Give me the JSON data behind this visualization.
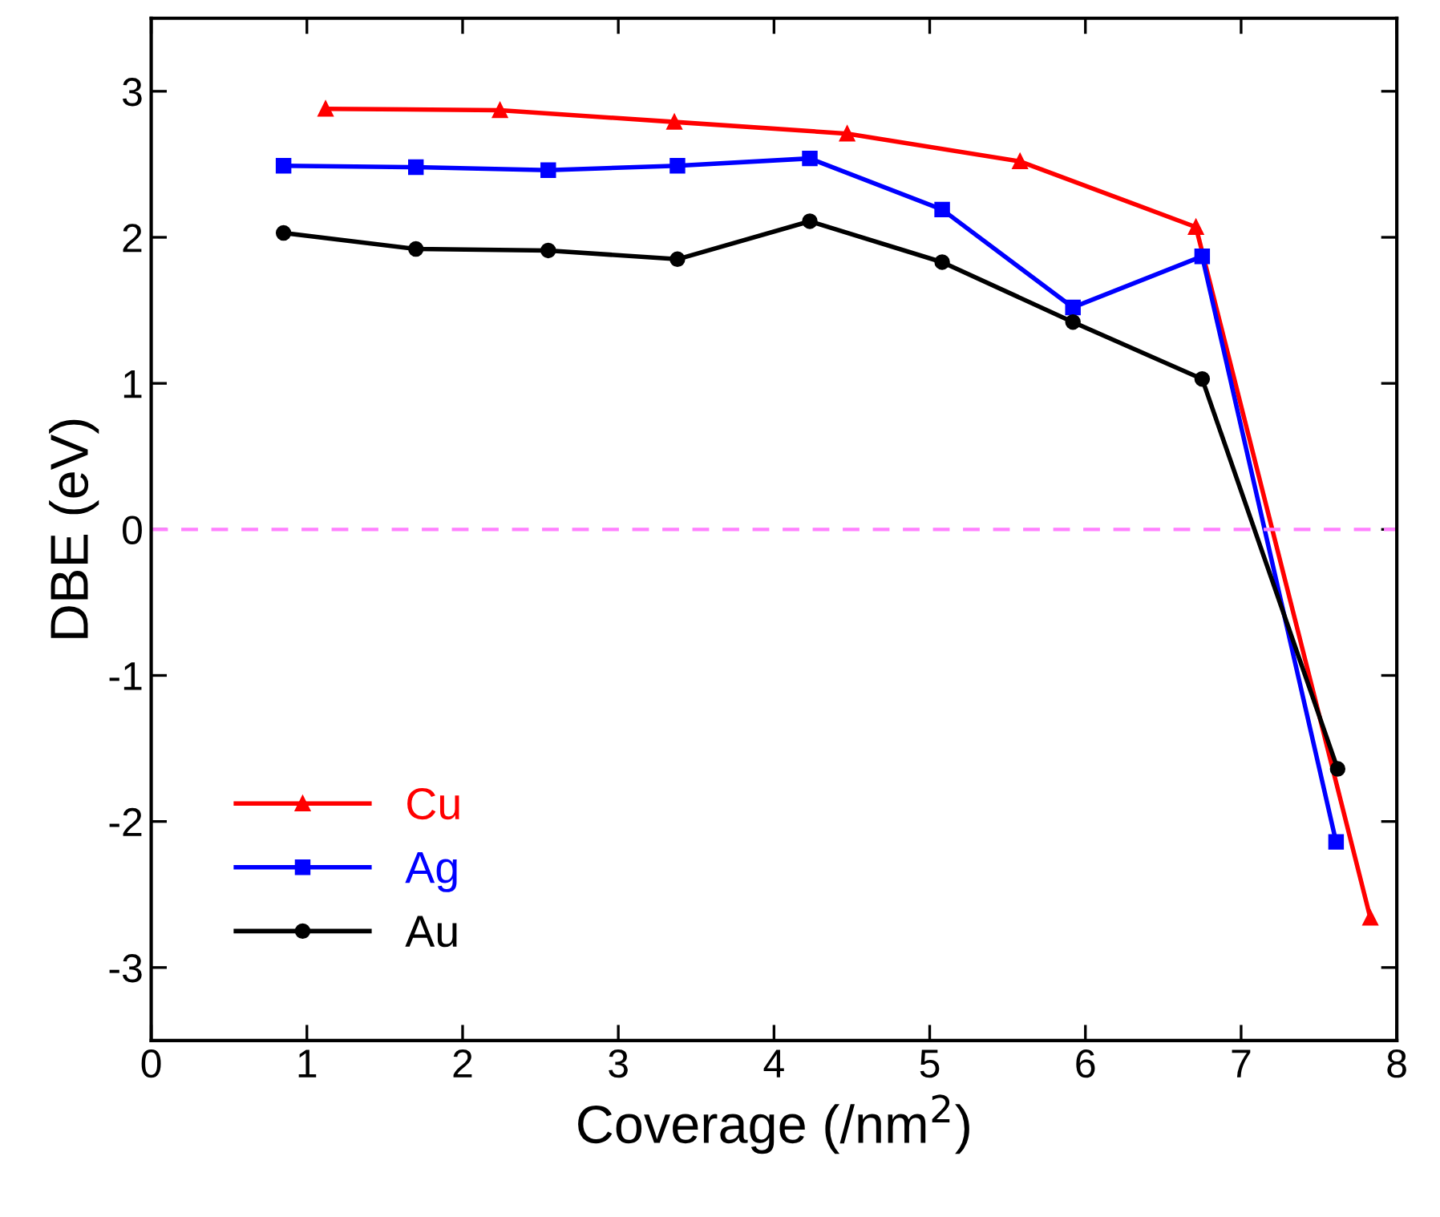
{
  "chart_data": {
    "type": "line",
    "xlabel": "Coverage (/nm$^{2}$)",
    "ylabel": "DBE (eV)",
    "xlim": [
      0,
      8
    ],
    "xticks": [
      0,
      1,
      2,
      3,
      4,
      5,
      6,
      7,
      8
    ],
    "ylim": [
      -3.5,
      3.5
    ],
    "yticks": [
      -3,
      -2,
      -1,
      0,
      1,
      2,
      3
    ],
    "grid": false,
    "legend": "bottom left",
    "ref_lines": [
      {
        "axis": "y",
        "value": 0,
        "color": "#ff80ff",
        "line_style": "dashed"
      }
    ],
    "series": [
      {
        "name": "Cu",
        "color": "#ff0000",
        "marker": "triangle",
        "x": [
          1.12,
          2.24,
          3.36,
          4.47,
          5.58,
          6.71,
          7.83
        ],
        "values": [
          2.88,
          2.87,
          2.79,
          2.71,
          2.52,
          2.07,
          -2.66
        ]
      },
      {
        "name": "Ag",
        "color": "#0000ff",
        "marker": "square",
        "x": [
          0.85,
          1.7,
          2.55,
          3.38,
          4.23,
          5.08,
          5.92,
          6.75,
          7.61
        ],
        "values": [
          2.49,
          2.48,
          2.46,
          2.49,
          2.54,
          2.19,
          1.52,
          1.87,
          -2.14
        ]
      },
      {
        "name": "Au",
        "color": "#000000",
        "marker": "circle",
        "x": [
          0.85,
          1.7,
          2.55,
          3.38,
          4.23,
          5.08,
          5.92,
          6.75,
          7.62
        ],
        "values": [
          2.03,
          1.92,
          1.91,
          1.85,
          2.11,
          1.83,
          1.42,
          1.03,
          -1.64
        ]
      }
    ]
  }
}
